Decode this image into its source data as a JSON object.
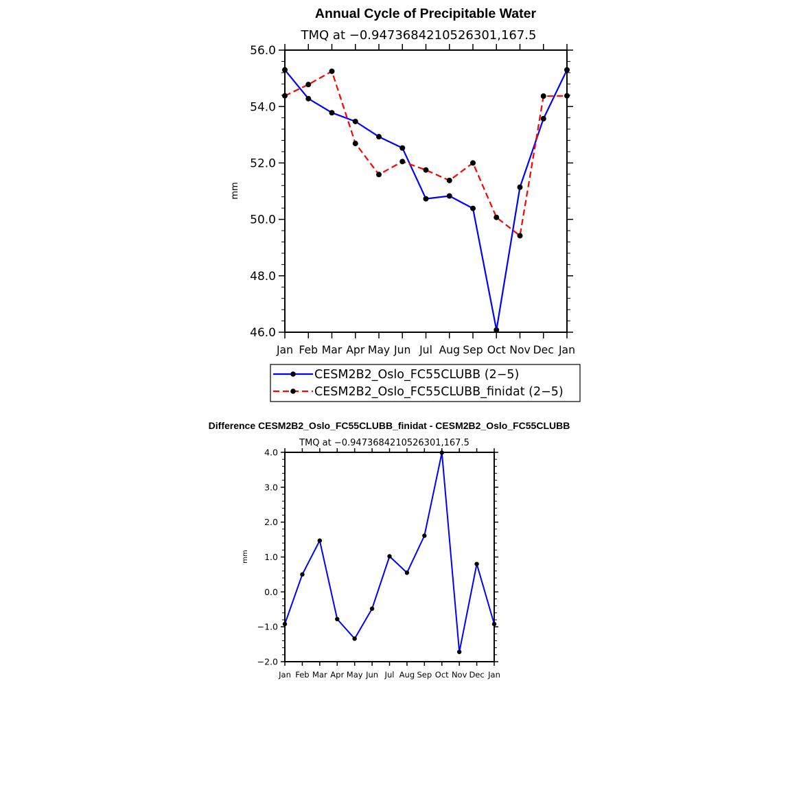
{
  "chart_data": [
    {
      "type": "line",
      "title": "Annual Cycle of Precipitable Water",
      "subtitle": "TMQ at −0.9473684210526301,167.5",
      "xlabel": "",
      "ylabel": "mm",
      "categories": [
        "Jan",
        "Feb",
        "Mar",
        "Apr",
        "May",
        "Jun",
        "Jul",
        "Aug",
        "Sep",
        "Oct",
        "Nov",
        "Dec",
        "Jan"
      ],
      "ylim": [
        46.0,
        56.0
      ],
      "yticks": [
        "46.0",
        "48.0",
        "50.0",
        "52.0",
        "54.0",
        "56.0"
      ],
      "grid": false,
      "legend_position": "bottom",
      "series": [
        {
          "name": "CESM2B2_Oslo_FC55CLUBB (2−5)",
          "color": "#0000ff",
          "style": "solid",
          "values": [
            55.3,
            54.28,
            53.78,
            53.47,
            52.93,
            52.53,
            50.73,
            50.83,
            50.39,
            46.08,
            51.14,
            53.57,
            55.3
          ]
        },
        {
          "name": "CESM2B2_Oslo_FC55CLUBB_finidat (2−5)",
          "color": "#ff0000",
          "style": "dashed",
          "values": [
            54.38,
            54.78,
            55.25,
            52.69,
            51.59,
            52.05,
            51.75,
            51.38,
            52.0,
            50.07,
            49.42,
            54.37,
            54.38
          ]
        }
      ]
    },
    {
      "type": "line",
      "title": "Difference CESM2B2_Oslo_FC55CLUBB_finidat - CESM2B2_Oslo_FC55CLUBB",
      "subtitle": "TMQ at −0.9473684210526301,167.5",
      "xlabel": "",
      "ylabel": "mm",
      "categories": [
        "Jan",
        "Feb",
        "Mar",
        "Apr",
        "May",
        "Jun",
        "Jul",
        "Aug",
        "Sep",
        "Oct",
        "Nov",
        "Dec",
        "Jan"
      ],
      "ylim": [
        -2.0,
        4.0
      ],
      "yticks": [
        "−2.0",
        "−1.0",
        "0.0",
        "1.0",
        "2.0",
        "3.0",
        "4.0"
      ],
      "grid": false,
      "series": [
        {
          "name": "",
          "color": "#0000ff",
          "style": "solid",
          "values": [
            -0.92,
            0.5,
            1.47,
            -0.78,
            -1.34,
            -0.48,
            1.02,
            0.55,
            1.61,
            3.99,
            -1.72,
            0.8,
            -0.92
          ]
        }
      ]
    }
  ]
}
